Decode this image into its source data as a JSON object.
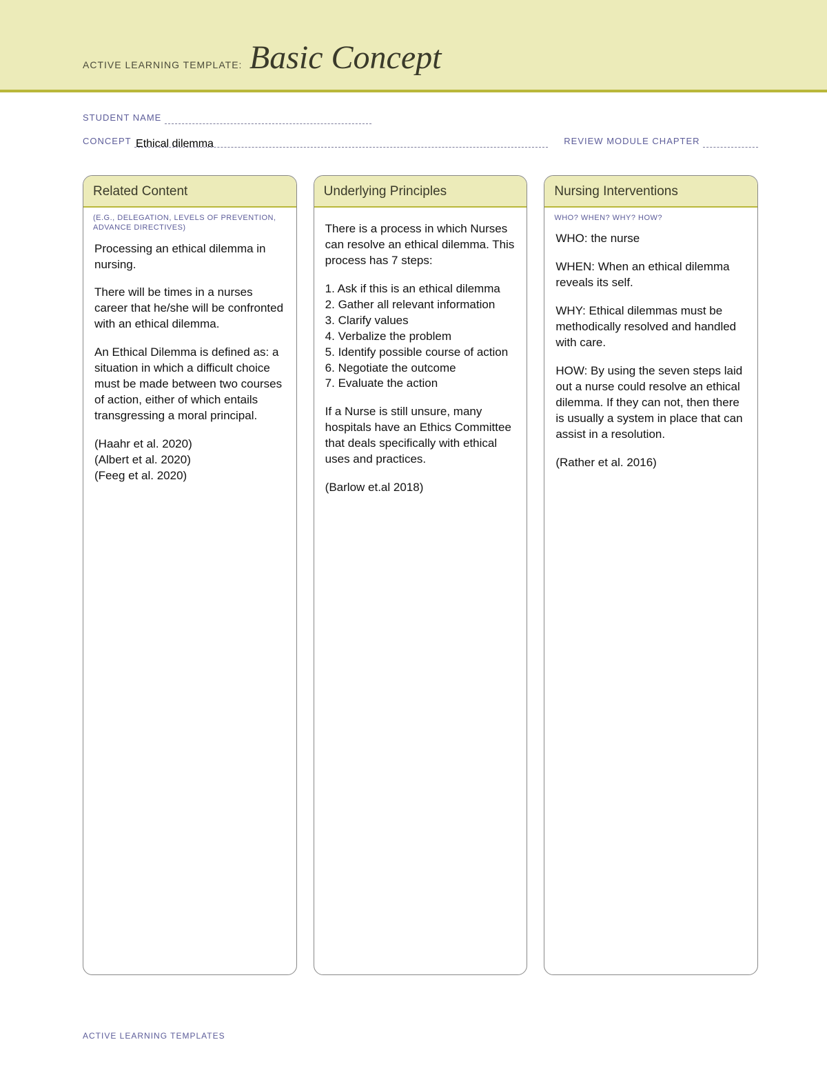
{
  "header": {
    "prefix": "ACTIVE LEARNING TEMPLATE:",
    "title": "Basic Concept",
    "band_color": "#ecebb9",
    "rule_color": "#b9b73a",
    "title_fontsize": 48,
    "title_font": "Georgia italic",
    "prefix_color": "#4a4a3a"
  },
  "form": {
    "student_label": "STUDENT NAME",
    "student_value": "",
    "concept_label": "CONCEPT",
    "concept_value": "Ethical dilemma",
    "review_label": "REVIEW MODULE CHAPTER",
    "review_value": "",
    "label_color": "#5c5c99",
    "line_style": "dashed"
  },
  "columns": [
    {
      "title": "Related Content",
      "subtitle": "(E.G., DELEGATION,\nLEVELS OF PREVENTION,\nADVANCE DIRECTIVES)",
      "paragraphs": [
        "Processing an ethical dilemma in nursing.",
        "There will be times in a nurses career that he/she will be confronted with an ethical dilemma.",
        "An Ethical Dilemma is defined as: a situation in which a difficult choice must be made between two courses of action, either of which entails transgressing a moral principal.",
        "(Haahr et al. 2020)\n(Albert et al. 2020)\n(Feeg et al. 2020)"
      ]
    },
    {
      "title": "Underlying Principles",
      "subtitle": "",
      "paragraphs": [
        "There is a process in which Nurses can resolve an ethical dilemma. This process has 7 steps:",
        "1. Ask if this is an ethical dilemma\n2. Gather all relevant information\n3. Clarify values\n4. Verbalize the problem\n5. Identify possible course of action\n6. Negotiate the outcome\n7. Evaluate the action",
        "If a Nurse is still unsure, many hospitals have an Ethics Committee that deals specifically with ethical uses and practices.",
        "(Barlow et.al 2018)"
      ]
    },
    {
      "title": "Nursing Interventions",
      "subtitle": "WHO? WHEN? WHY? HOW?",
      "paragraphs": [
        "WHO: the nurse",
        "WHEN: When an ethical dilemma reveals its self.",
        "WHY: Ethical dilemmas must be methodically resolved and handled with care.",
        "HOW: By using the seven steps laid out a nurse could resolve an ethical dilemma. If they can not, then there is usually a system in place that can assist in a resolution.",
        "(Rather et al. 2016)"
      ]
    }
  ],
  "style": {
    "column_border_color": "#888888",
    "column_border_radius": 14,
    "column_head_bg": "#ecebb9",
    "column_head_rule": "#b9b73a",
    "subhead_color": "#5c5c99",
    "body_fontsize": 17,
    "body_color": "#111111",
    "page_bg": "#ffffff"
  },
  "footer": {
    "text": "ACTIVE LEARNING TEMPLATES"
  }
}
